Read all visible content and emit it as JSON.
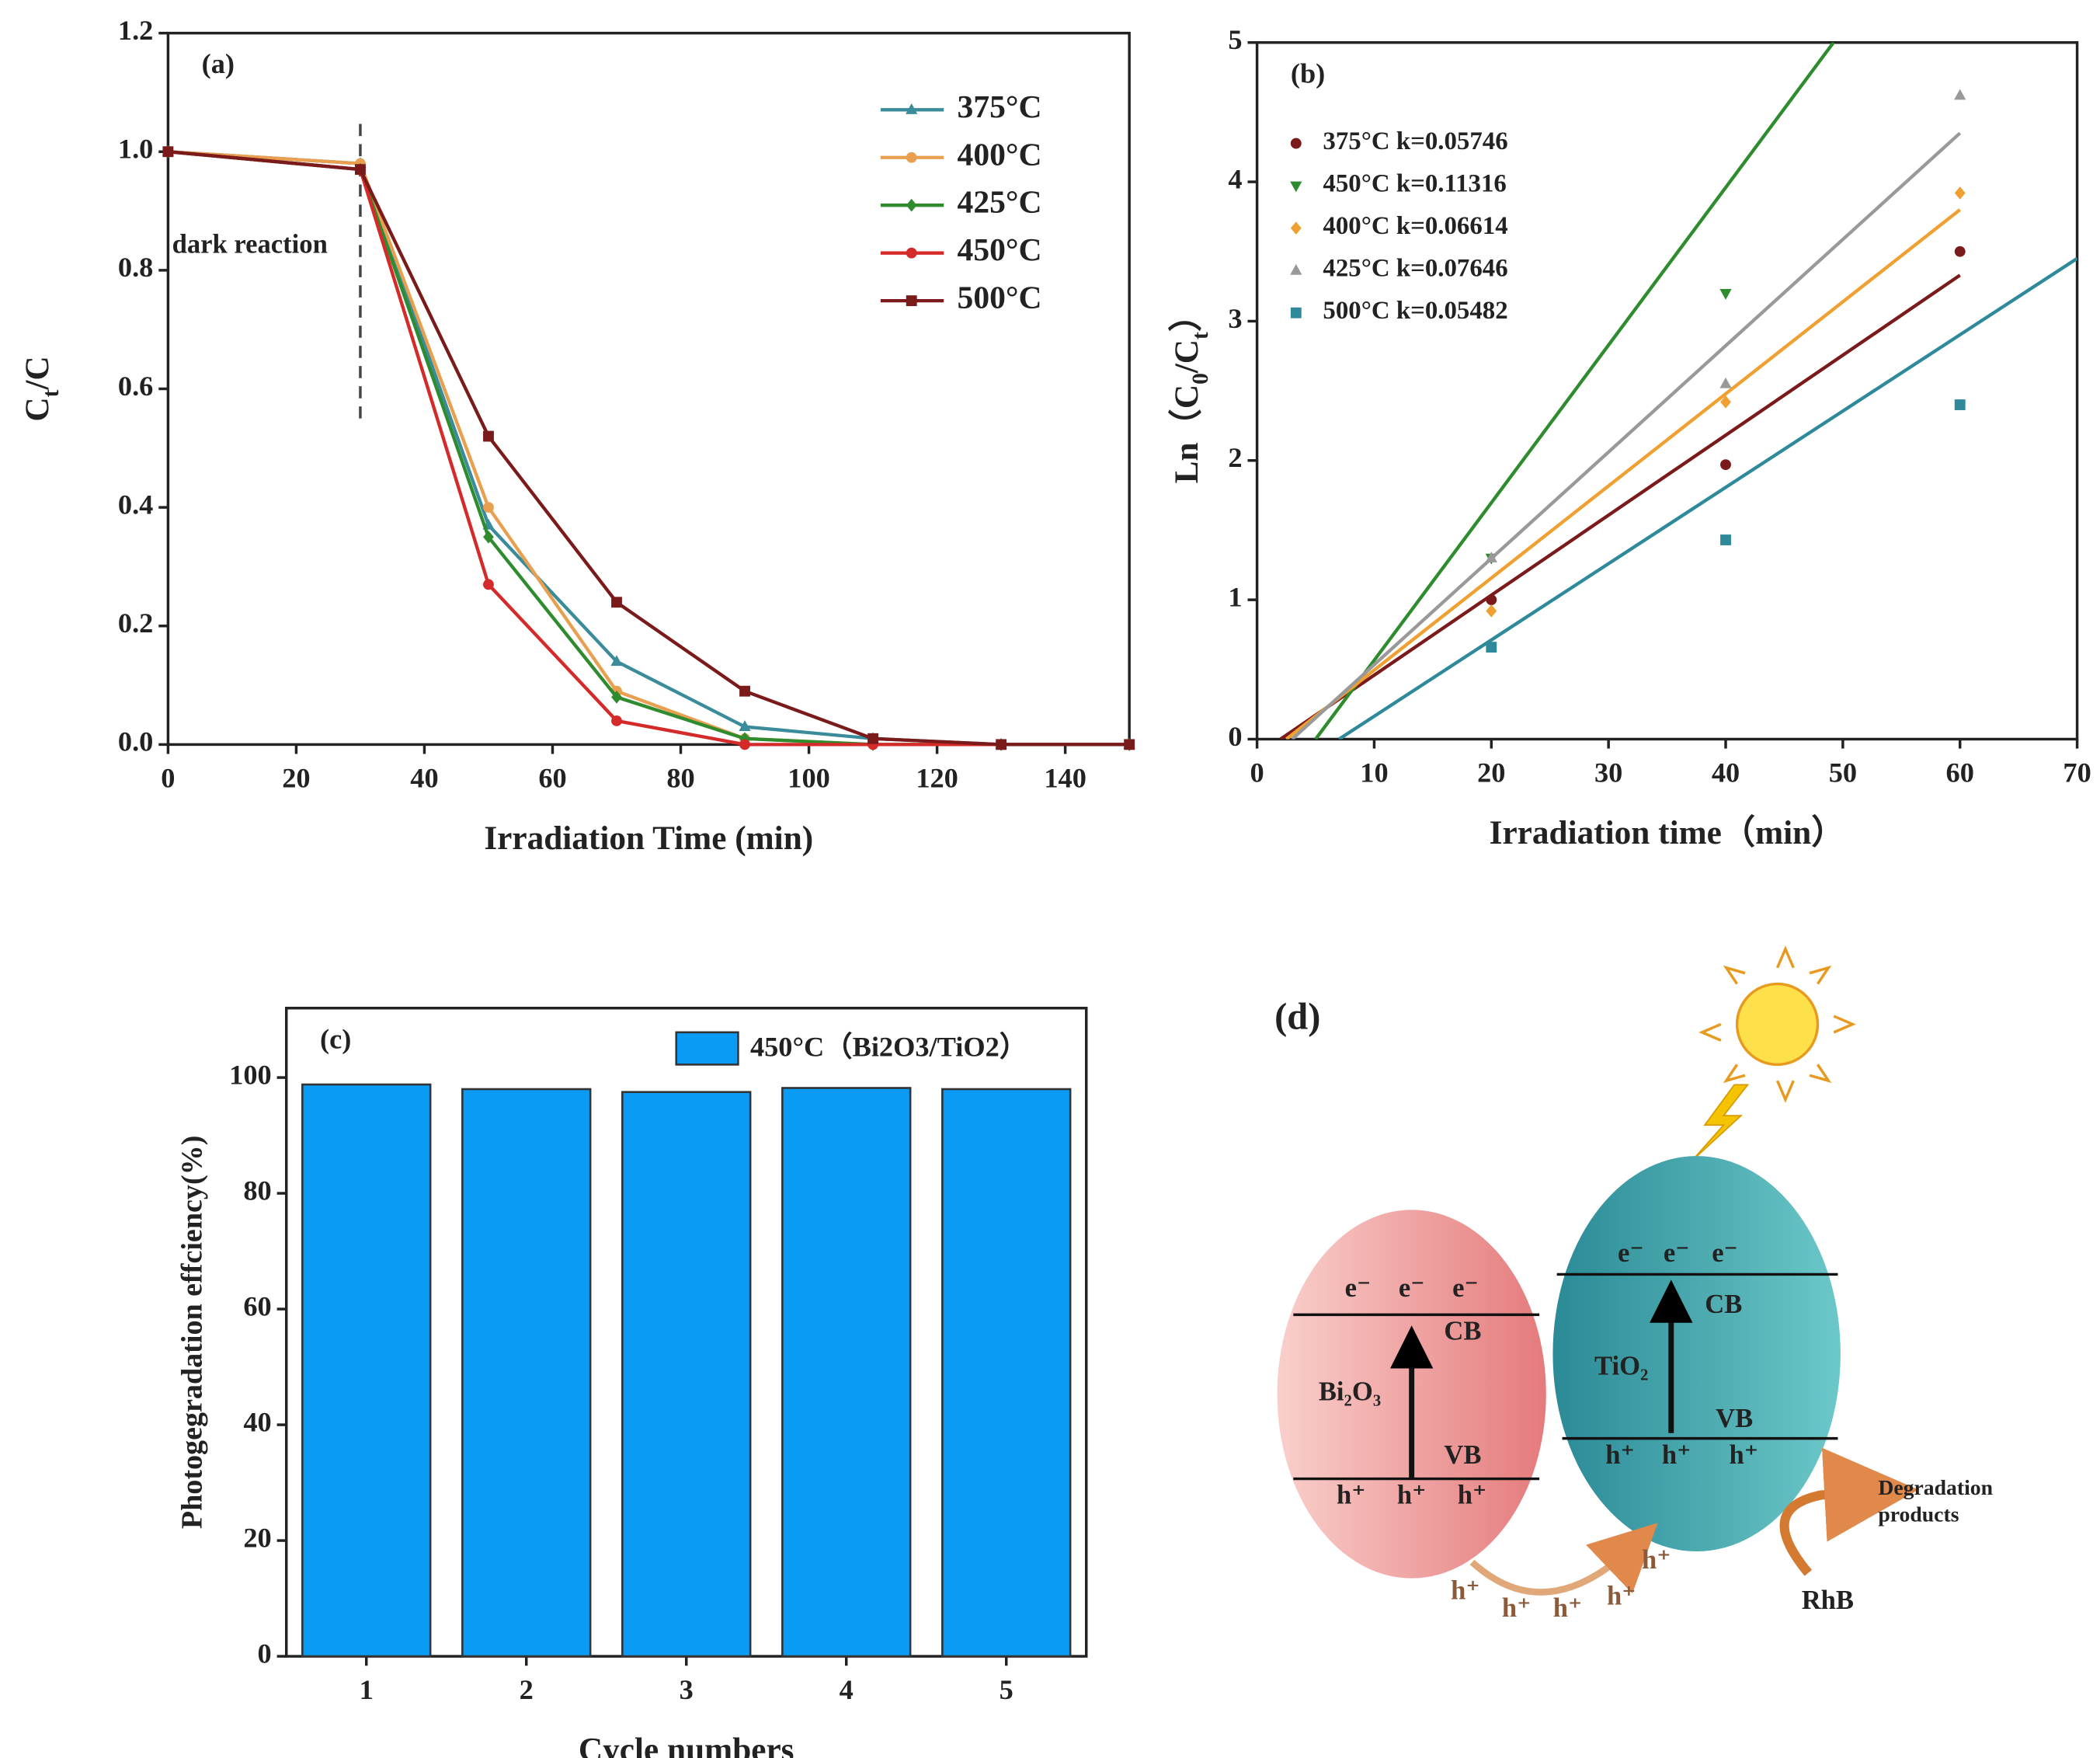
{
  "chart_data": [
    {
      "type": "line",
      "panel_label": "(a)",
      "annotation": "dark reaction",
      "xlabel": "Irradiation Time (min)",
      "ylabel_parts": [
        "C",
        "t",
        "/C"
      ],
      "x": [
        0,
        30,
        50,
        70,
        90,
        110,
        130,
        150
      ],
      "series": [
        {
          "name": "375°C",
          "color": "#3a8c9a",
          "marker": "triangle",
          "values": [
            1.0,
            0.98,
            0.37,
            0.14,
            0.03,
            0.01,
            0,
            0
          ]
        },
        {
          "name": "400°C",
          "color": "#e8a050",
          "marker": "circle",
          "values": [
            1.0,
            0.98,
            0.4,
            0.09,
            0.01,
            0,
            0,
            0
          ]
        },
        {
          "name": "425°C",
          "color": "#2e8b2e",
          "marker": "diamond",
          "values": [
            1.0,
            0.97,
            0.35,
            0.08,
            0.01,
            0,
            0,
            0
          ]
        },
        {
          "name": "450°C",
          "color": "#d42a2a",
          "marker": "circle",
          "values": [
            1.0,
            0.97,
            0.27,
            0.04,
            0,
            0,
            0,
            0
          ]
        },
        {
          "name": "500°C",
          "color": "#7a1a1a",
          "marker": "square",
          "values": [
            1.0,
            0.97,
            0.52,
            0.24,
            0.09,
            0.01,
            0,
            0
          ]
        }
      ],
      "vline": {
        "x": 30,
        "y": [
          0.55,
          1.05
        ]
      },
      "xlim": [
        0,
        150
      ],
      "xticks": [
        0,
        20,
        40,
        60,
        80,
        100,
        120,
        140
      ],
      "ylim": [
        0,
        1.2
      ],
      "yticks": [
        {
          "value": 0,
          "label": "0.0"
        },
        0.2,
        0.4,
        0.6,
        0.8,
        {
          "value": 1,
          "label": "1.0"
        },
        1.2
      ],
      "legend": "upper right"
    },
    {
      "type": "scatter",
      "panel_label": "(b)",
      "xlabel": "Irradiation time（min）",
      "ylabel_parts": [
        "Ln（C",
        "0",
        "/C",
        "t",
        "）"
      ],
      "x": [
        20,
        40,
        60
      ],
      "series": [
        {
          "name": "375°C k=0.05746",
          "color": "#7a1a1a",
          "marker": "circle",
          "values": [
            1.0,
            1.97,
            3.5
          ],
          "fit": {
            "x": [
              2,
              60
            ],
            "y": [
              0,
              3.33
            ]
          }
        },
        {
          "name": "450°C k=0.11316",
          "color": "#2e8b2e",
          "marker": "triangle-down",
          "values": [
            1.3,
            3.2,
            null
          ],
          "fit": {
            "x": [
              5,
              49.2
            ],
            "y": [
              0,
              5
            ]
          }
        },
        {
          "name": "400°C k=0.06614",
          "color": "#f0a030",
          "marker": "diamond",
          "values": [
            0.92,
            2.42,
            3.92
          ],
          "fit": {
            "x": [
              2.5,
              60
            ],
            "y": [
              0,
              3.8
            ]
          }
        },
        {
          "name": "425°C k=0.07646",
          "color": "#999999",
          "marker": "triangle",
          "values": [
            1.3,
            2.55,
            4.62
          ],
          "fit": {
            "x": [
              3,
              60
            ],
            "y": [
              0,
              4.35
            ]
          }
        },
        {
          "name": "500°C k=0.05482",
          "color": "#2e8a9a",
          "marker": "square",
          "values": [
            0.66,
            1.43,
            2.4
          ],
          "fit": {
            "x": [
              7,
              70
            ],
            "y": [
              0,
              3.45
            ]
          }
        }
      ],
      "xlim": [
        0,
        70
      ],
      "xticks": [
        0,
        10,
        20,
        30,
        40,
        50,
        60,
        70
      ],
      "ylim": [
        0,
        5
      ],
      "yticks": [
        0,
        1,
        2,
        3,
        4,
        5
      ],
      "legend": "upper left"
    },
    {
      "type": "bar",
      "panel_label": "(c)",
      "xlabel": "Cycle numbers",
      "ylabel": "Photogegradation effciency(%)",
      "categories": [
        "1",
        "2",
        "3",
        "4",
        "5"
      ],
      "series": [
        {
          "name": "450°C（Bi2O3/TiO2）",
          "color": "#0a9cf5",
          "values": [
            98.8,
            98.0,
            97.5,
            98.2,
            98.0
          ]
        }
      ],
      "ylim": [
        0,
        112
      ],
      "yticks": [
        0,
        20,
        40,
        60,
        80,
        100
      ],
      "legend": "upper right"
    }
  ],
  "diagram": {
    "label": "(d)",
    "bi2o3": {
      "name": "Bi₂O₃",
      "cb": "CB",
      "vb": "VB",
      "electrons": [
        "e⁻",
        "e⁻",
        "e⁻"
      ],
      "holes": [
        "h⁺",
        "h⁺",
        "h⁺"
      ]
    },
    "tio2": {
      "name": "TiO₂",
      "cb": "CB",
      "vb": "VB",
      "electrons": [
        "e⁻",
        "e⁻",
        "e⁻"
      ],
      "holes": [
        "h⁺",
        "h⁺",
        "h⁺"
      ]
    },
    "migrating_holes": [
      "h⁺",
      "h⁺",
      "h⁺",
      "h⁺",
      "h⁺"
    ],
    "products": [
      "Degradation",
      "products"
    ],
    "pollutant": "RhB"
  }
}
